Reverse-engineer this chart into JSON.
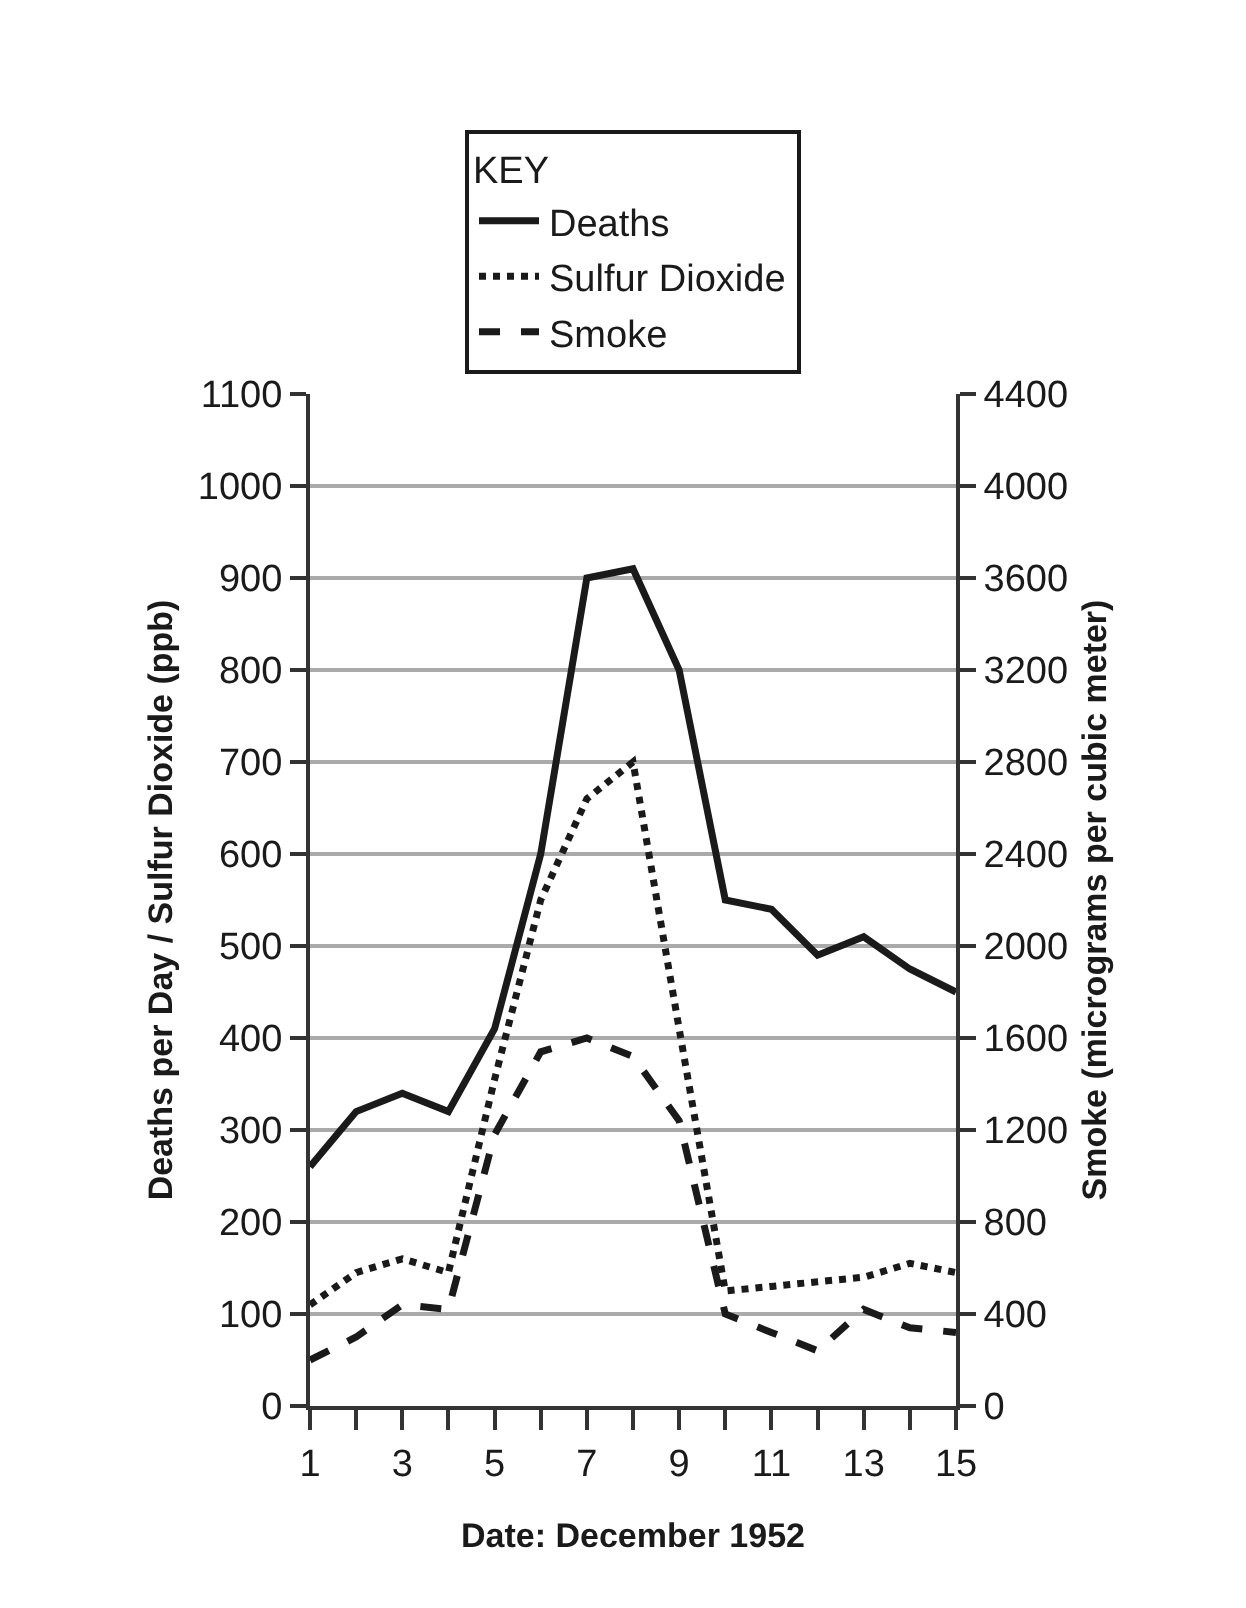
{
  "chart_data": {
    "type": "line",
    "xlabel": "Date: December 1952",
    "ylabel": "Deaths per Day / Sulfur Dioxide (ppb)",
    "y2label": "Smoke (micrograms per cubic meter)",
    "legend_title": "KEY",
    "legend": "top",
    "x": [
      1,
      2,
      3,
      4,
      5,
      6,
      7,
      8,
      9,
      10,
      11,
      12,
      13,
      14,
      15
    ],
    "series": [
      {
        "name": "Deaths",
        "color": "#1a1a1a",
        "line_style": "solid",
        "values": [
          260,
          320,
          340,
          320,
          410,
          600,
          900,
          910,
          800,
          550,
          540,
          490,
          510,
          475,
          450
        ]
      },
      {
        "name": "Sulfur Dioxide",
        "color": "#1a1a1a",
        "line_style": "dotted",
        "values": [
          110,
          145,
          160,
          145,
          355,
          550,
          660,
          700,
          410,
          125,
          130,
          135,
          140,
          155,
          145
        ]
      },
      {
        "name": "Smoke",
        "color": "#1a1a1a",
        "line_style": "dashed",
        "axis": "y2",
        "values": [
          200,
          300,
          440,
          420,
          1180,
          1540,
          1600,
          1520,
          1240,
          400,
          320,
          240,
          420,
          340,
          320
        ]
      }
    ],
    "xlim": [
      1,
      15
    ],
    "xticks": [
      1,
      {
        "value": 2,
        "label": null
      },
      3,
      {
        "value": 4,
        "label": null
      },
      5,
      {
        "value": 6,
        "label": null
      },
      7,
      {
        "value": 8,
        "label": null
      },
      9,
      {
        "value": 10,
        "label": null
      },
      11,
      {
        "value": 12,
        "label": null
      },
      13,
      {
        "value": 14,
        "label": null
      },
      15
    ],
    "ylim": [
      0,
      1100
    ],
    "yticks": [
      0,
      100,
      200,
      300,
      400,
      500,
      600,
      700,
      800,
      900,
      1000,
      1100
    ],
    "y2lim": [
      0,
      4400
    ],
    "y2ticks": [
      0,
      400,
      800,
      1200,
      1600,
      2000,
      2400,
      2800,
      3200,
      3600,
      4000,
      4400
    ],
    "grid": "y"
  }
}
